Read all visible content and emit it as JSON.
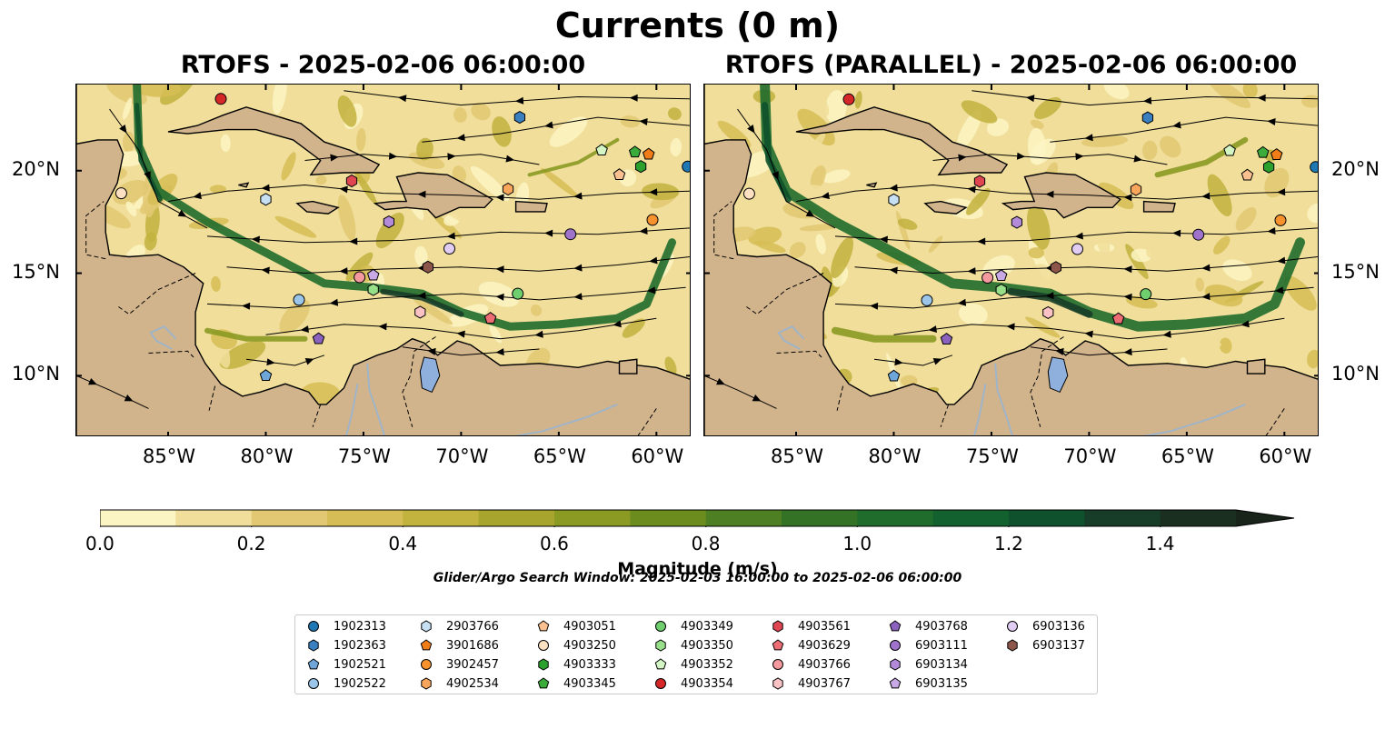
{
  "figure": {
    "title": "Currents (0 m)",
    "panels": [
      {
        "title": "RTOFS - 2025-02-06 06:00:00"
      },
      {
        "title": "RTOFS (PARALLEL) - 2025-02-06 06:00:00"
      }
    ],
    "lon_ticks": [
      "85°W",
      "80°W",
      "75°W",
      "70°W",
      "65°W",
      "60°W"
    ],
    "lon_values": [
      -85,
      -80,
      -75,
      -70,
      -65,
      -60
    ],
    "lat_ticks": [
      "20°N",
      "15°N",
      "10°N"
    ],
    "lat_values": [
      20,
      15,
      10
    ],
    "extent": {
      "lon": [
        -89.7,
        -58.2
      ],
      "lat": [
        7.0,
        24.2
      ]
    },
    "colors": {
      "land": "#d2b48c",
      "lake": "#8fb0dc",
      "river": "#a0b4c8",
      "colormap": [
        "#fbf4c3",
        "#f0de9a",
        "#e2c872",
        "#d6bd55",
        "#c2b23e",
        "#a8a52f",
        "#8a9a22",
        "#6c8c1e",
        "#4e7f22",
        "#347326",
        "#1f6c2c",
        "#12612e",
        "#0e512c",
        "#173d28",
        "#1b2f20",
        "#18231a"
      ]
    },
    "colorbar": {
      "label": "Magnitude (m/s)",
      "ticks": [
        "0.0",
        "0.2",
        "0.4",
        "0.6",
        "0.8",
        "1.0",
        "1.2",
        "1.4"
      ],
      "tick_values": [
        0.0,
        0.2,
        0.4,
        0.6,
        0.8,
        1.0,
        1.2,
        1.4
      ],
      "range": [
        0.0,
        1.5
      ],
      "extend": "max"
    },
    "search_window": "Glider/Argo Search Window: 2025-02-03 16:00:00 to 2025-02-06 06:00:00",
    "platforms": [
      {
        "id": "1902313",
        "marker": "circle",
        "color": "#1f77b4",
        "lon": -58.4,
        "lat": 20.2
      },
      {
        "id": "1902363",
        "marker": "hexagon",
        "color": "#3a7fc0",
        "lon": -67.0,
        "lat": 22.6
      },
      {
        "id": "1902521",
        "marker": "pentagon",
        "color": "#6ea6d9",
        "lon": -80.0,
        "lat": 10.0
      },
      {
        "id": "1902522",
        "marker": "circle",
        "color": "#9bc6ea",
        "lon": -78.3,
        "lat": 13.7
      },
      {
        "id": "2903766",
        "marker": "hexagon",
        "color": "#c6dff2",
        "lon": -80.0,
        "lat": 18.6
      },
      {
        "id": "3901686",
        "marker": "pentagon",
        "color": "#f07d18",
        "lon": -60.4,
        "lat": 20.8
      },
      {
        "id": "3902457",
        "marker": "circle",
        "color": "#f7922e",
        "lon": -60.2,
        "lat": 17.6
      },
      {
        "id": "4902534",
        "marker": "hexagon",
        "color": "#f9a65c",
        "lon": -67.6,
        "lat": 19.1
      },
      {
        "id": "4903051",
        "marker": "pentagon",
        "color": "#fbc08f",
        "lon": -61.9,
        "lat": 19.8
      },
      {
        "id": "4903250",
        "marker": "circle",
        "color": "#fde0c2",
        "lon": -87.4,
        "lat": 18.9
      },
      {
        "id": "4903333",
        "marker": "hexagon",
        "color": "#2ca02c",
        "lon": -60.8,
        "lat": 20.2
      },
      {
        "id": "4903345",
        "marker": "pentagon",
        "color": "#3bab3b",
        "lon": -61.1,
        "lat": 20.9
      },
      {
        "id": "4903349",
        "marker": "circle",
        "color": "#6fcf6f",
        "lon": -67.1,
        "lat": 14.0
      },
      {
        "id": "4903350",
        "marker": "hexagon",
        "color": "#98df8a",
        "lon": -74.5,
        "lat": 14.2
      },
      {
        "id": "4903352",
        "marker": "pentagon",
        "color": "#d4f6c4",
        "lon": -62.8,
        "lat": 21.0
      },
      {
        "id": "4903354",
        "marker": "circle",
        "color": "#d62728",
        "lon": -82.3,
        "lat": 23.5
      },
      {
        "id": "4903561",
        "marker": "hexagon",
        "color": "#e04651",
        "lon": -75.6,
        "lat": 19.5
      },
      {
        "id": "4903629",
        "marker": "pentagon",
        "color": "#ec6d73",
        "lon": -68.5,
        "lat": 12.8
      },
      {
        "id": "4903766",
        "marker": "circle",
        "color": "#f49a9e",
        "lon": -75.2,
        "lat": 14.8
      },
      {
        "id": "4903767",
        "marker": "hexagon",
        "color": "#fac2c4",
        "lon": -72.1,
        "lat": 13.1
      },
      {
        "id": "4903768",
        "marker": "pentagon",
        "color": "#8c62bf",
        "lon": -77.3,
        "lat": 11.8
      },
      {
        "id": "6903111",
        "marker": "circle",
        "color": "#9f73cc",
        "lon": -64.4,
        "lat": 16.9
      },
      {
        "id": "6903134",
        "marker": "hexagon",
        "color": "#b28ad9",
        "lon": -73.7,
        "lat": 17.5
      },
      {
        "id": "6903135",
        "marker": "pentagon",
        "color": "#c9a8e6",
        "lon": -74.5,
        "lat": 14.9
      },
      {
        "id": "6903136",
        "marker": "circle",
        "color": "#e1ccf4",
        "lon": -70.6,
        "lat": 16.2
      },
      {
        "id": "6903137",
        "marker": "hexagon",
        "color": "#8c564b",
        "lon": -71.7,
        "lat": 15.3
      }
    ]
  }
}
